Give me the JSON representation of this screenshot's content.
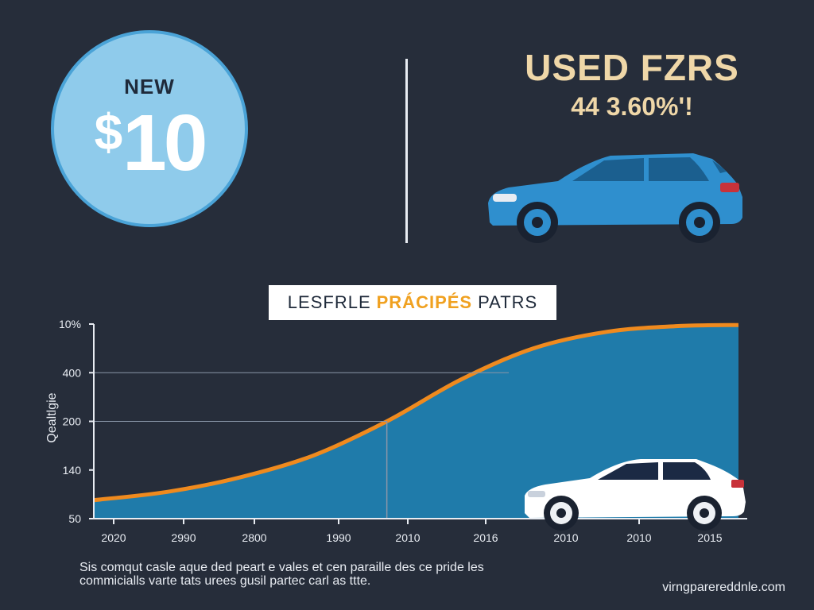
{
  "header": {
    "new_label": "NEW",
    "new_price_symbol": "$",
    "new_price_value": "10",
    "used_title": "USED FZRS",
    "used_subtitle": "44 3.60%'!"
  },
  "banner": {
    "prefix": "LESFRLE",
    "highlight": "PRÁCIPÉS",
    "suffix": "PATRS"
  },
  "chart_data": {
    "type": "area",
    "ylabel": "Qealtlgie",
    "y_ticks": [
      "10%",
      "400",
      "200",
      "140",
      "50"
    ],
    "x_ticks": [
      "2020",
      "2990",
      "2800",
      "1990",
      "2010",
      "2016",
      "2010",
      "2010",
      "2015"
    ],
    "y_range": [
      0,
      4
    ],
    "x_range": [
      0,
      8.8
    ],
    "series": [
      {
        "x": [
          0,
          1,
          2,
          3,
          4,
          5,
          6,
          7,
          8,
          8.8
        ],
        "y": [
          0.38,
          0.55,
          0.85,
          1.3,
          2.0,
          2.85,
          3.5,
          3.84,
          3.96,
          3.98
        ]
      }
    ],
    "guide_lines": {
      "h_at": [
        2,
        3
      ],
      "v_at": 4
    },
    "grid": false,
    "colors": {
      "fill": "#1f7baa",
      "line": "#ef8a1e",
      "axis": "#e8ecf2",
      "guide": "#8a96a8"
    }
  },
  "caption": {
    "line1": "Sis comqut casle aque ded peart e vales et cen paraille des ce pride les",
    "line2": "commicialls varte tats urees gusil partec carl as ttte."
  },
  "footer": {
    "site": "virngparereddnle.com"
  }
}
